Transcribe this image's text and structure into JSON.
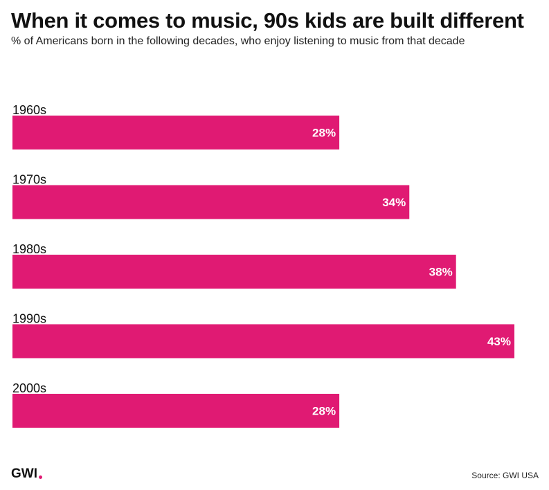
{
  "colors": {
    "bar": "#E01A73",
    "accent_dot": "#E01A73",
    "text": "#111111"
  },
  "chart_data": {
    "type": "bar",
    "orientation": "horizontal",
    "title": "When it comes to music, 90s kids are built different",
    "subtitle": "% of Americans born in the following decades, who enjoy listening to music from that decade",
    "categories": [
      "1960s",
      "1970s",
      "1980s",
      "1990s",
      "2000s"
    ],
    "values": [
      28,
      34,
      38,
      43,
      28
    ],
    "value_labels": [
      "28%",
      "34%",
      "38%",
      "43%",
      "28%"
    ],
    "unit": "%",
    "xlim": [
      0,
      43
    ],
    "xlabel": "",
    "ylabel": "",
    "grid": false,
    "legend": "none"
  },
  "footer": {
    "logo_text": "GWI",
    "source": "Source: GWI USA"
  }
}
